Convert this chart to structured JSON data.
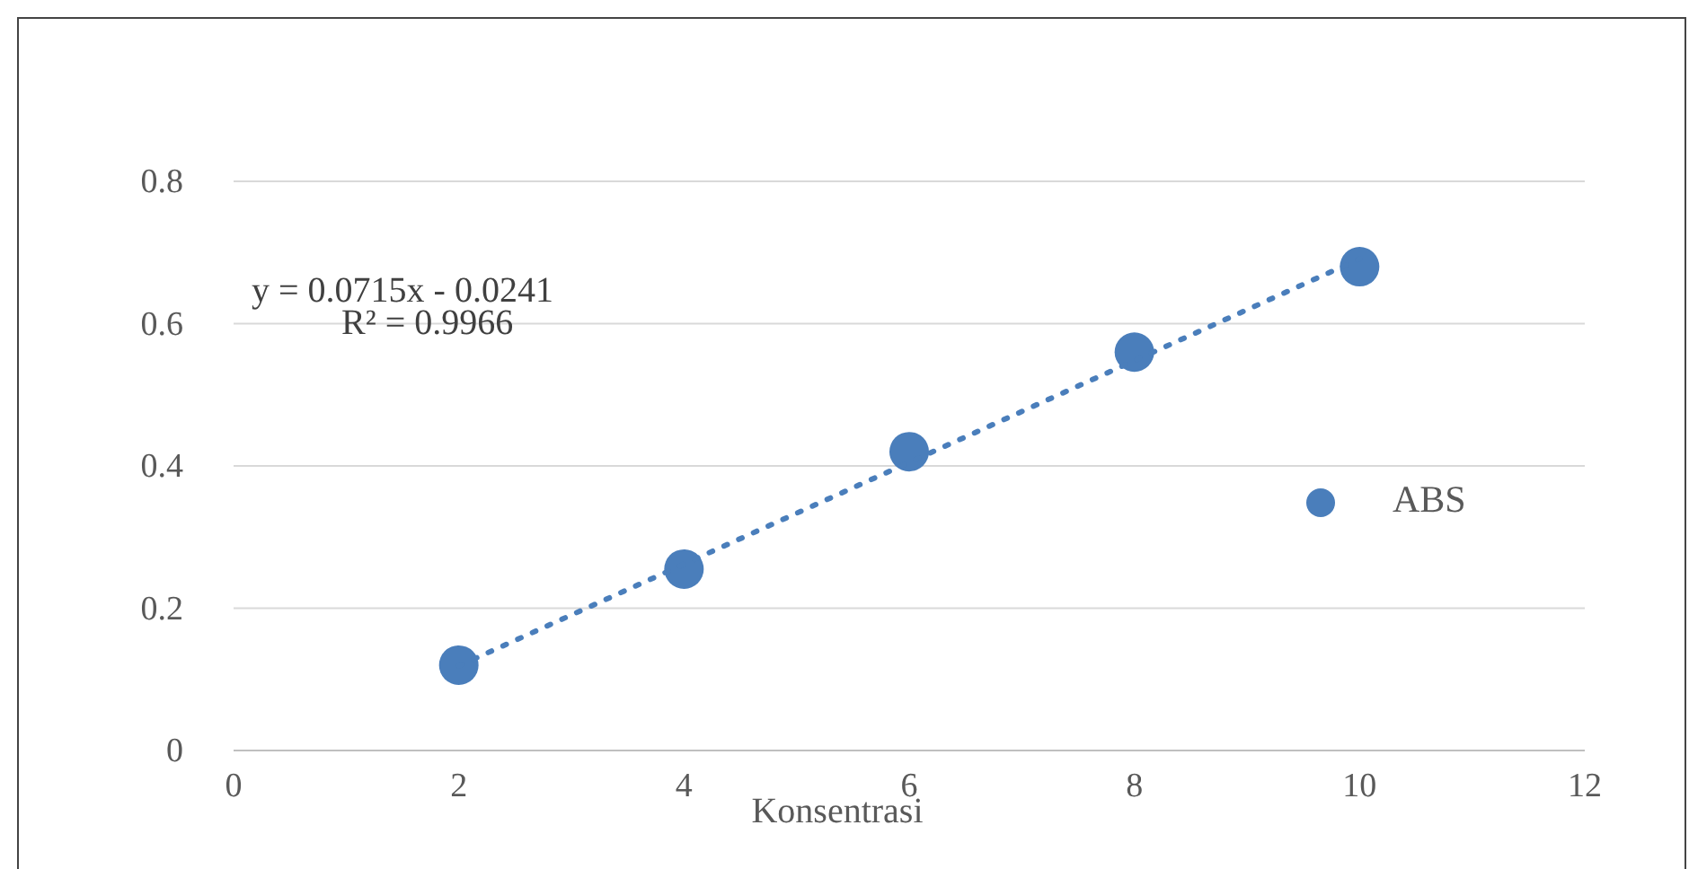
{
  "chart_data": {
    "type": "scatter",
    "xlabel": "Konsentrasi",
    "x": [
      2,
      4,
      6,
      8,
      10
    ],
    "series": [
      {
        "name": "ABS",
        "color": "#4a7ebb",
        "values": [
          0.12,
          0.255,
          0.42,
          0.56,
          0.68
        ],
        "marker": "circle"
      },
      {
        "type": "line",
        "color": "#4a7ebb",
        "x": [
          2,
          10
        ],
        "values": [
          0.119,
          0.691
        ],
        "line_style": "dotted",
        "marker": "none"
      }
    ],
    "xlim": [
      0,
      12
    ],
    "xticks": [
      0,
      2,
      4,
      6,
      8,
      10,
      12
    ],
    "ylim": [
      0,
      0.8
    ],
    "yticks": [
      0,
      0.2,
      0.4,
      0.6,
      0.8
    ],
    "grid": "y",
    "legend": "right",
    "annotations": [
      "y = 0.0715x - 0.0241",
      "R² = 0.9966"
    ]
  }
}
